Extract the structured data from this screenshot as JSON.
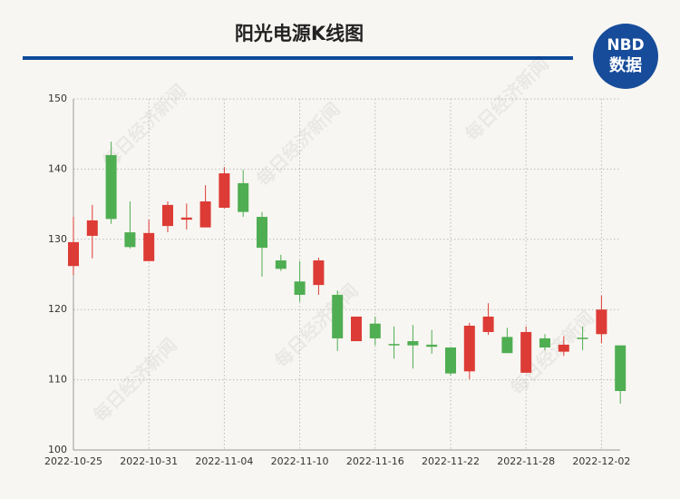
{
  "chart_data": {
    "type": "candlestick",
    "title": "阳光电源K线图",
    "logo": {
      "top": "NBD",
      "bottom": "数据"
    },
    "watermark": "每日经济新闻",
    "categories": [
      "2022-10-25",
      null,
      null,
      null,
      "2022-10-31",
      null,
      null,
      null,
      "2022-11-04",
      null,
      null,
      null,
      "2022-11-10",
      null,
      null,
      null,
      "2022-11-16",
      null,
      null,
      null,
      "2022-11-22",
      null,
      null,
      null,
      "2022-11-28",
      null,
      null,
      null,
      "2022-12-02",
      null
    ],
    "open": [
      126.2,
      130.5,
      142.0,
      131.0,
      126.9,
      131.9,
      132.8,
      131.7,
      134.5,
      138.0,
      133.2,
      127.0,
      124.0,
      123.5,
      122.1,
      115.5,
      118.0,
      115.1,
      115.5,
      115.0,
      114.6,
      111.2,
      116.8,
      116.1,
      111.0,
      115.9,
      114.0,
      116.0,
      116.5,
      114.9
    ],
    "high": [
      133.2,
      134.9,
      143.9,
      135.4,
      132.8,
      135.4,
      135.1,
      137.7,
      140.3,
      139.9,
      133.9,
      127.8,
      126.9,
      127.4,
      122.7,
      119.0,
      119.0,
      117.6,
      117.8,
      117.1,
      114.6,
      118.1,
      120.9,
      117.4,
      117.6,
      116.5,
      116.2,
      117.6,
      122.0,
      114.9
    ],
    "low": [
      124.9,
      127.3,
      132.2,
      128.7,
      126.9,
      131.0,
      131.4,
      131.7,
      134.4,
      133.2,
      124.7,
      125.5,
      121.1,
      122.1,
      114.1,
      115.5,
      114.9,
      113.0,
      111.6,
      113.7,
      110.6,
      110.1,
      116.4,
      113.8,
      111.0,
      114.2,
      113.4,
      114.2,
      115.2,
      106.6
    ],
    "close": [
      129.6,
      132.7,
      132.9,
      128.9,
      130.9,
      134.9,
      133.1,
      135.4,
      139.4,
      133.9,
      128.8,
      125.8,
      122.1,
      127.0,
      115.9,
      119.0,
      115.9,
      114.9,
      114.9,
      114.7,
      110.9,
      117.7,
      119.0,
      113.8,
      116.8,
      114.6,
      115.0,
      115.8,
      120.0,
      108.4
    ],
    "up_color": "#dd3b35",
    "down_color": "#4fae52",
    "ylim": [
      100,
      150
    ],
    "yticks": [
      100,
      110,
      120,
      130,
      140,
      150
    ],
    "grid": true
  }
}
